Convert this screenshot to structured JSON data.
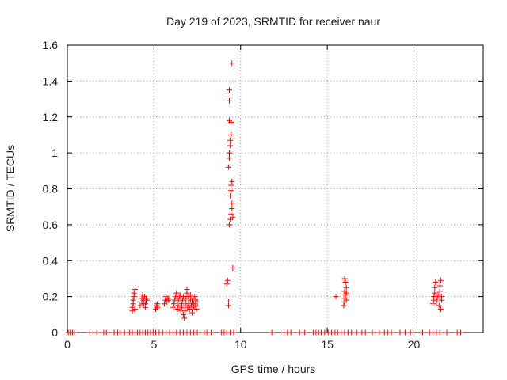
{
  "chart_data": {
    "type": "scatter",
    "title": "Day 219 of 2023, SRMTID for receiver naur",
    "xlabel": "GPS time / hours",
    "ylabel": "SRMTID / TECUs",
    "xlim": [
      0,
      24
    ],
    "ylim": [
      0,
      1.6
    ],
    "xticks": [
      0,
      5,
      10,
      15,
      20
    ],
    "yticks": [
      0,
      0.2,
      0.4,
      0.6,
      0.8,
      1,
      1.2,
      1.4,
      1.6
    ],
    "xtick_labels": [
      "0",
      "5",
      "10",
      "15",
      "20"
    ],
    "ytick_labels": [
      "0",
      "0.2",
      "0.4",
      "0.6",
      "0.8",
      "1",
      "1.2",
      "1.4",
      "1.6"
    ],
    "grid": true,
    "marker": "+",
    "color": "#ff0000",
    "series": [
      {
        "name": "naur",
        "points": [
          [
            0.05,
            0
          ],
          [
            0.15,
            0
          ],
          [
            0.3,
            0
          ],
          [
            0.4,
            0
          ],
          [
            1.3,
            0
          ],
          [
            1.7,
            0
          ],
          [
            2.1,
            0
          ],
          [
            2.25,
            0
          ],
          [
            2.7,
            0
          ],
          [
            2.9,
            0
          ],
          [
            3.05,
            0
          ],
          [
            3.3,
            0
          ],
          [
            3.5,
            0
          ],
          [
            3.6,
            0
          ],
          [
            3.75,
            0
          ],
          [
            3.9,
            0
          ],
          [
            4.05,
            0
          ],
          [
            4.2,
            0
          ],
          [
            4.35,
            0
          ],
          [
            4.5,
            0
          ],
          [
            4.65,
            0
          ],
          [
            4.8,
            0
          ],
          [
            4.95,
            0
          ],
          [
            5.1,
            0
          ],
          [
            5.3,
            0
          ],
          [
            5.5,
            0
          ],
          [
            5.7,
            0
          ],
          [
            5.9,
            0
          ],
          [
            6.1,
            0
          ],
          [
            6.3,
            0
          ],
          [
            6.5,
            0
          ],
          [
            6.7,
            0
          ],
          [
            6.9,
            0
          ],
          [
            7.1,
            0
          ],
          [
            7.3,
            0
          ],
          [
            7.5,
            0
          ],
          [
            7.9,
            0
          ],
          [
            8.05,
            0
          ],
          [
            8.3,
            0
          ],
          [
            8.9,
            0
          ],
          [
            9.05,
            0
          ],
          [
            9.2,
            0
          ],
          [
            9.4,
            0
          ],
          [
            9.6,
            0
          ],
          [
            11.8,
            0
          ],
          [
            12.5,
            0
          ],
          [
            12.7,
            0
          ],
          [
            12.9,
            0
          ],
          [
            13.4,
            0
          ],
          [
            13.7,
            0
          ],
          [
            14.2,
            0
          ],
          [
            14.35,
            0
          ],
          [
            14.5,
            0
          ],
          [
            14.65,
            0
          ],
          [
            14.85,
            0
          ],
          [
            15.05,
            0
          ],
          [
            15.25,
            0
          ],
          [
            15.45,
            0
          ],
          [
            15.6,
            0
          ],
          [
            15.8,
            0
          ],
          [
            16.0,
            0
          ],
          [
            16.2,
            0
          ],
          [
            16.4,
            0
          ],
          [
            16.7,
            0
          ],
          [
            17.0,
            0
          ],
          [
            17.2,
            0
          ],
          [
            17.6,
            0
          ],
          [
            18.0,
            0
          ],
          [
            18.3,
            0
          ],
          [
            18.5,
            0
          ],
          [
            18.7,
            0
          ],
          [
            19.2,
            0
          ],
          [
            19.5,
            0
          ],
          [
            19.8,
            0
          ],
          [
            20.5,
            0
          ],
          [
            20.9,
            0
          ],
          [
            21.1,
            0
          ],
          [
            21.3,
            0
          ],
          [
            21.5,
            0
          ],
          [
            21.9,
            0
          ],
          [
            22.5,
            0
          ],
          [
            22.7,
            0
          ],
          [
            3.75,
            0.12
          ],
          [
            3.75,
            0.14
          ],
          [
            3.8,
            0.16
          ],
          [
            3.8,
            0.18
          ],
          [
            3.85,
            0.2
          ],
          [
            3.85,
            0.22
          ],
          [
            3.9,
            0.24
          ],
          [
            3.9,
            0.13
          ],
          [
            3.8,
            0.17
          ],
          [
            4.2,
            0.15
          ],
          [
            4.3,
            0.17
          ],
          [
            4.3,
            0.19
          ],
          [
            4.35,
            0.21
          ],
          [
            4.4,
            0.16
          ],
          [
            4.4,
            0.18
          ],
          [
            4.45,
            0.2
          ],
          [
            4.5,
            0.14
          ],
          [
            4.5,
            0.16
          ],
          [
            4.55,
            0.17
          ],
          [
            4.55,
            0.19
          ],
          [
            4.6,
            0.18
          ],
          [
            5.1,
            0.13
          ],
          [
            5.15,
            0.15
          ],
          [
            5.2,
            0.14
          ],
          [
            5.2,
            0.16
          ],
          [
            5.6,
            0.16
          ],
          [
            5.65,
            0.18
          ],
          [
            5.7,
            0.2
          ],
          [
            5.75,
            0.17
          ],
          [
            5.8,
            0.19
          ],
          [
            5.85,
            0.18
          ],
          [
            6.1,
            0.14
          ],
          [
            6.15,
            0.16
          ],
          [
            6.2,
            0.18
          ],
          [
            6.25,
            0.2
          ],
          [
            6.3,
            0.22
          ],
          [
            6.35,
            0.13
          ],
          [
            6.4,
            0.15
          ],
          [
            6.4,
            0.17
          ],
          [
            6.45,
            0.19
          ],
          [
            6.5,
            0.21
          ],
          [
            6.55,
            0.12
          ],
          [
            6.6,
            0.14
          ],
          [
            6.6,
            0.16
          ],
          [
            6.65,
            0.18
          ],
          [
            6.7,
            0.1
          ],
          [
            6.7,
            0.2
          ],
          [
            6.75,
            0.08
          ],
          [
            6.8,
            0.12
          ],
          [
            6.8,
            0.15
          ],
          [
            6.85,
            0.17
          ],
          [
            6.85,
            0.19
          ],
          [
            6.9,
            0.22
          ],
          [
            6.9,
            0.24
          ],
          [
            6.95,
            0.14
          ],
          [
            7.0,
            0.16
          ],
          [
            7.0,
            0.2
          ],
          [
            7.05,
            0.13
          ],
          [
            7.1,
            0.18
          ],
          [
            7.1,
            0.21
          ],
          [
            7.15,
            0.15
          ],
          [
            7.2,
            0.17
          ],
          [
            7.2,
            0.11
          ],
          [
            7.25,
            0.19
          ],
          [
            7.3,
            0.14
          ],
          [
            7.3,
            0.16
          ],
          [
            7.35,
            0.2
          ],
          [
            7.4,
            0.15
          ],
          [
            7.4,
            0.18
          ],
          [
            7.45,
            0.13
          ],
          [
            7.5,
            0.17
          ],
          [
            9.2,
            0.27
          ],
          [
            9.25,
            0.29
          ],
          [
            9.3,
            0.15
          ],
          [
            9.3,
            0.17
          ],
          [
            9.35,
            0.6
          ],
          [
            9.4,
            0.63
          ],
          [
            9.45,
            0.66
          ],
          [
            9.5,
            0.69
          ],
          [
            9.5,
            0.72
          ],
          [
            9.55,
            0.64
          ],
          [
            9.4,
            0.76
          ],
          [
            9.45,
            0.79
          ],
          [
            9.45,
            0.82
          ],
          [
            9.5,
            0.84
          ],
          [
            9.3,
            0.92
          ],
          [
            9.35,
            0.97
          ],
          [
            9.35,
            1.0
          ],
          [
            9.4,
            1.04
          ],
          [
            9.4,
            1.07
          ],
          [
            9.45,
            1.1
          ],
          [
            9.35,
            1.18
          ],
          [
            9.45,
            1.17
          ],
          [
            9.35,
            1.29
          ],
          [
            9.35,
            1.35
          ],
          [
            9.5,
            1.5
          ],
          [
            9.55,
            0.36
          ],
          [
            15.5,
            0.2
          ],
          [
            15.95,
            0.15
          ],
          [
            16.0,
            0.17
          ],
          [
            16.0,
            0.19
          ],
          [
            16.05,
            0.21
          ],
          [
            16.0,
            0.23
          ],
          [
            16.1,
            0.25
          ],
          [
            16.05,
            0.28
          ],
          [
            16.0,
            0.3
          ],
          [
            16.1,
            0.22
          ],
          [
            16.1,
            0.18
          ],
          [
            21.1,
            0.16
          ],
          [
            21.15,
            0.18
          ],
          [
            21.15,
            0.2
          ],
          [
            21.2,
            0.22
          ],
          [
            21.2,
            0.25
          ],
          [
            21.25,
            0.28
          ],
          [
            21.3,
            0.17
          ],
          [
            21.35,
            0.19
          ],
          [
            21.4,
            0.21
          ],
          [
            21.45,
            0.15
          ],
          [
            21.5,
            0.23
          ],
          [
            21.5,
            0.26
          ],
          [
            21.55,
            0.29
          ],
          [
            21.55,
            0.13
          ],
          [
            21.6,
            0.18
          ],
          [
            21.6,
            0.2
          ]
        ]
      }
    ]
  }
}
